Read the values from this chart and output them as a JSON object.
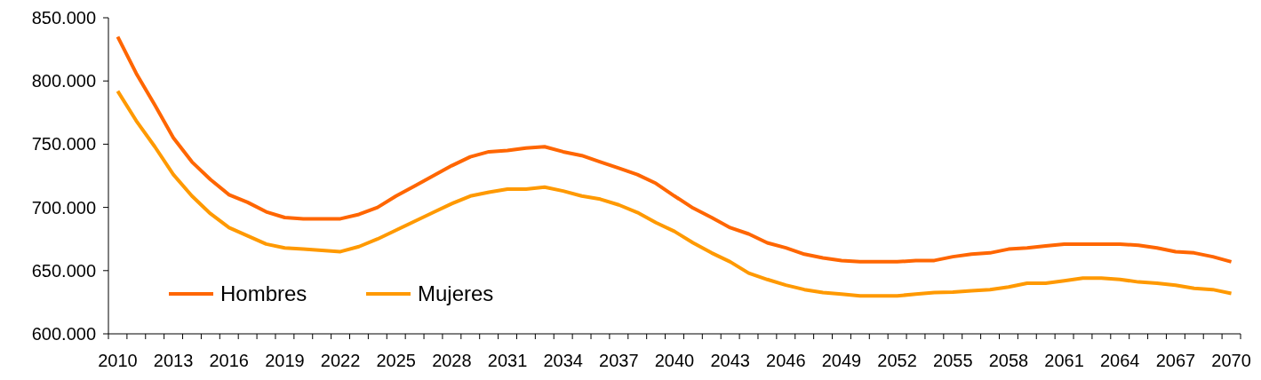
{
  "chart_data": {
    "type": "line",
    "categories": [
      "2010",
      null,
      null,
      "2013",
      null,
      null,
      "2016",
      null,
      null,
      "2019",
      null,
      null,
      "2022",
      null,
      null,
      "2025",
      null,
      null,
      "2028",
      null,
      null,
      "2031",
      null,
      null,
      "2034",
      null,
      null,
      "2037",
      null,
      null,
      "2040",
      null,
      null,
      "2043",
      null,
      null,
      "2046",
      null,
      null,
      "2049",
      null,
      null,
      "2052",
      null,
      null,
      "2055",
      null,
      null,
      "2058",
      null,
      null,
      "2061",
      null,
      null,
      "2064",
      null,
      null,
      "2067",
      null,
      null,
      "2070"
    ],
    "series": [
      {
        "name": "Hombres",
        "color": "#ff6600",
        "values": [
          835000,
          806000,
          781000,
          755000,
          736000,
          722000,
          710000,
          704000,
          696500,
          692000,
          691000,
          691000,
          691000,
          694500,
          700000,
          709000,
          717000,
          725000,
          733000,
          740000,
          744000,
          745000,
          747000,
          748000,
          744000,
          741000,
          736000,
          731000,
          726000,
          719000,
          709000,
          699500,
          692000,
          684000,
          679000,
          672000,
          668000,
          663000,
          660000,
          658000,
          657000,
          657000,
          657000,
          658000,
          658000,
          661000,
          663000,
          664000,
          667000,
          668000,
          669500,
          671000,
          671000,
          671000,
          671000,
          670000,
          668000,
          665000,
          664000,
          661000,
          657000
        ]
      },
      {
        "name": "Mujeres",
        "color": "#ff9900",
        "values": [
          792000,
          768500,
          748000,
          726000,
          709000,
          695000,
          684000,
          677500,
          671000,
          668000,
          667000,
          666000,
          665000,
          669000,
          675000,
          682000,
          689000,
          696000,
          703000,
          709000,
          712000,
          714500,
          714500,
          716000,
          713000,
          709000,
          706500,
          702000,
          696000,
          688000,
          681000,
          672000,
          664000,
          657000,
          648000,
          643000,
          638500,
          635000,
          632600,
          631500,
          630000,
          630000,
          630000,
          631500,
          632600,
          633000,
          634000,
          635000,
          637000,
          640000,
          640000,
          642000,
          644000,
          644000,
          643000,
          641000,
          640000,
          638500,
          636000,
          635000,
          632000
        ]
      }
    ],
    "ylim": [
      600000,
      850000
    ],
    "yticks": [
      {
        "value": 600000,
        "label": "600.000"
      },
      {
        "value": 650000,
        "label": "650.000"
      },
      {
        "value": 700000,
        "label": "700.000"
      },
      {
        "value": 750000,
        "label": "750.000"
      },
      {
        "value": 800000,
        "label": "800.000"
      },
      {
        "value": 850000,
        "label": "850.000"
      }
    ],
    "legend": "bottom left",
    "marker": "none",
    "line_style": "solid"
  }
}
